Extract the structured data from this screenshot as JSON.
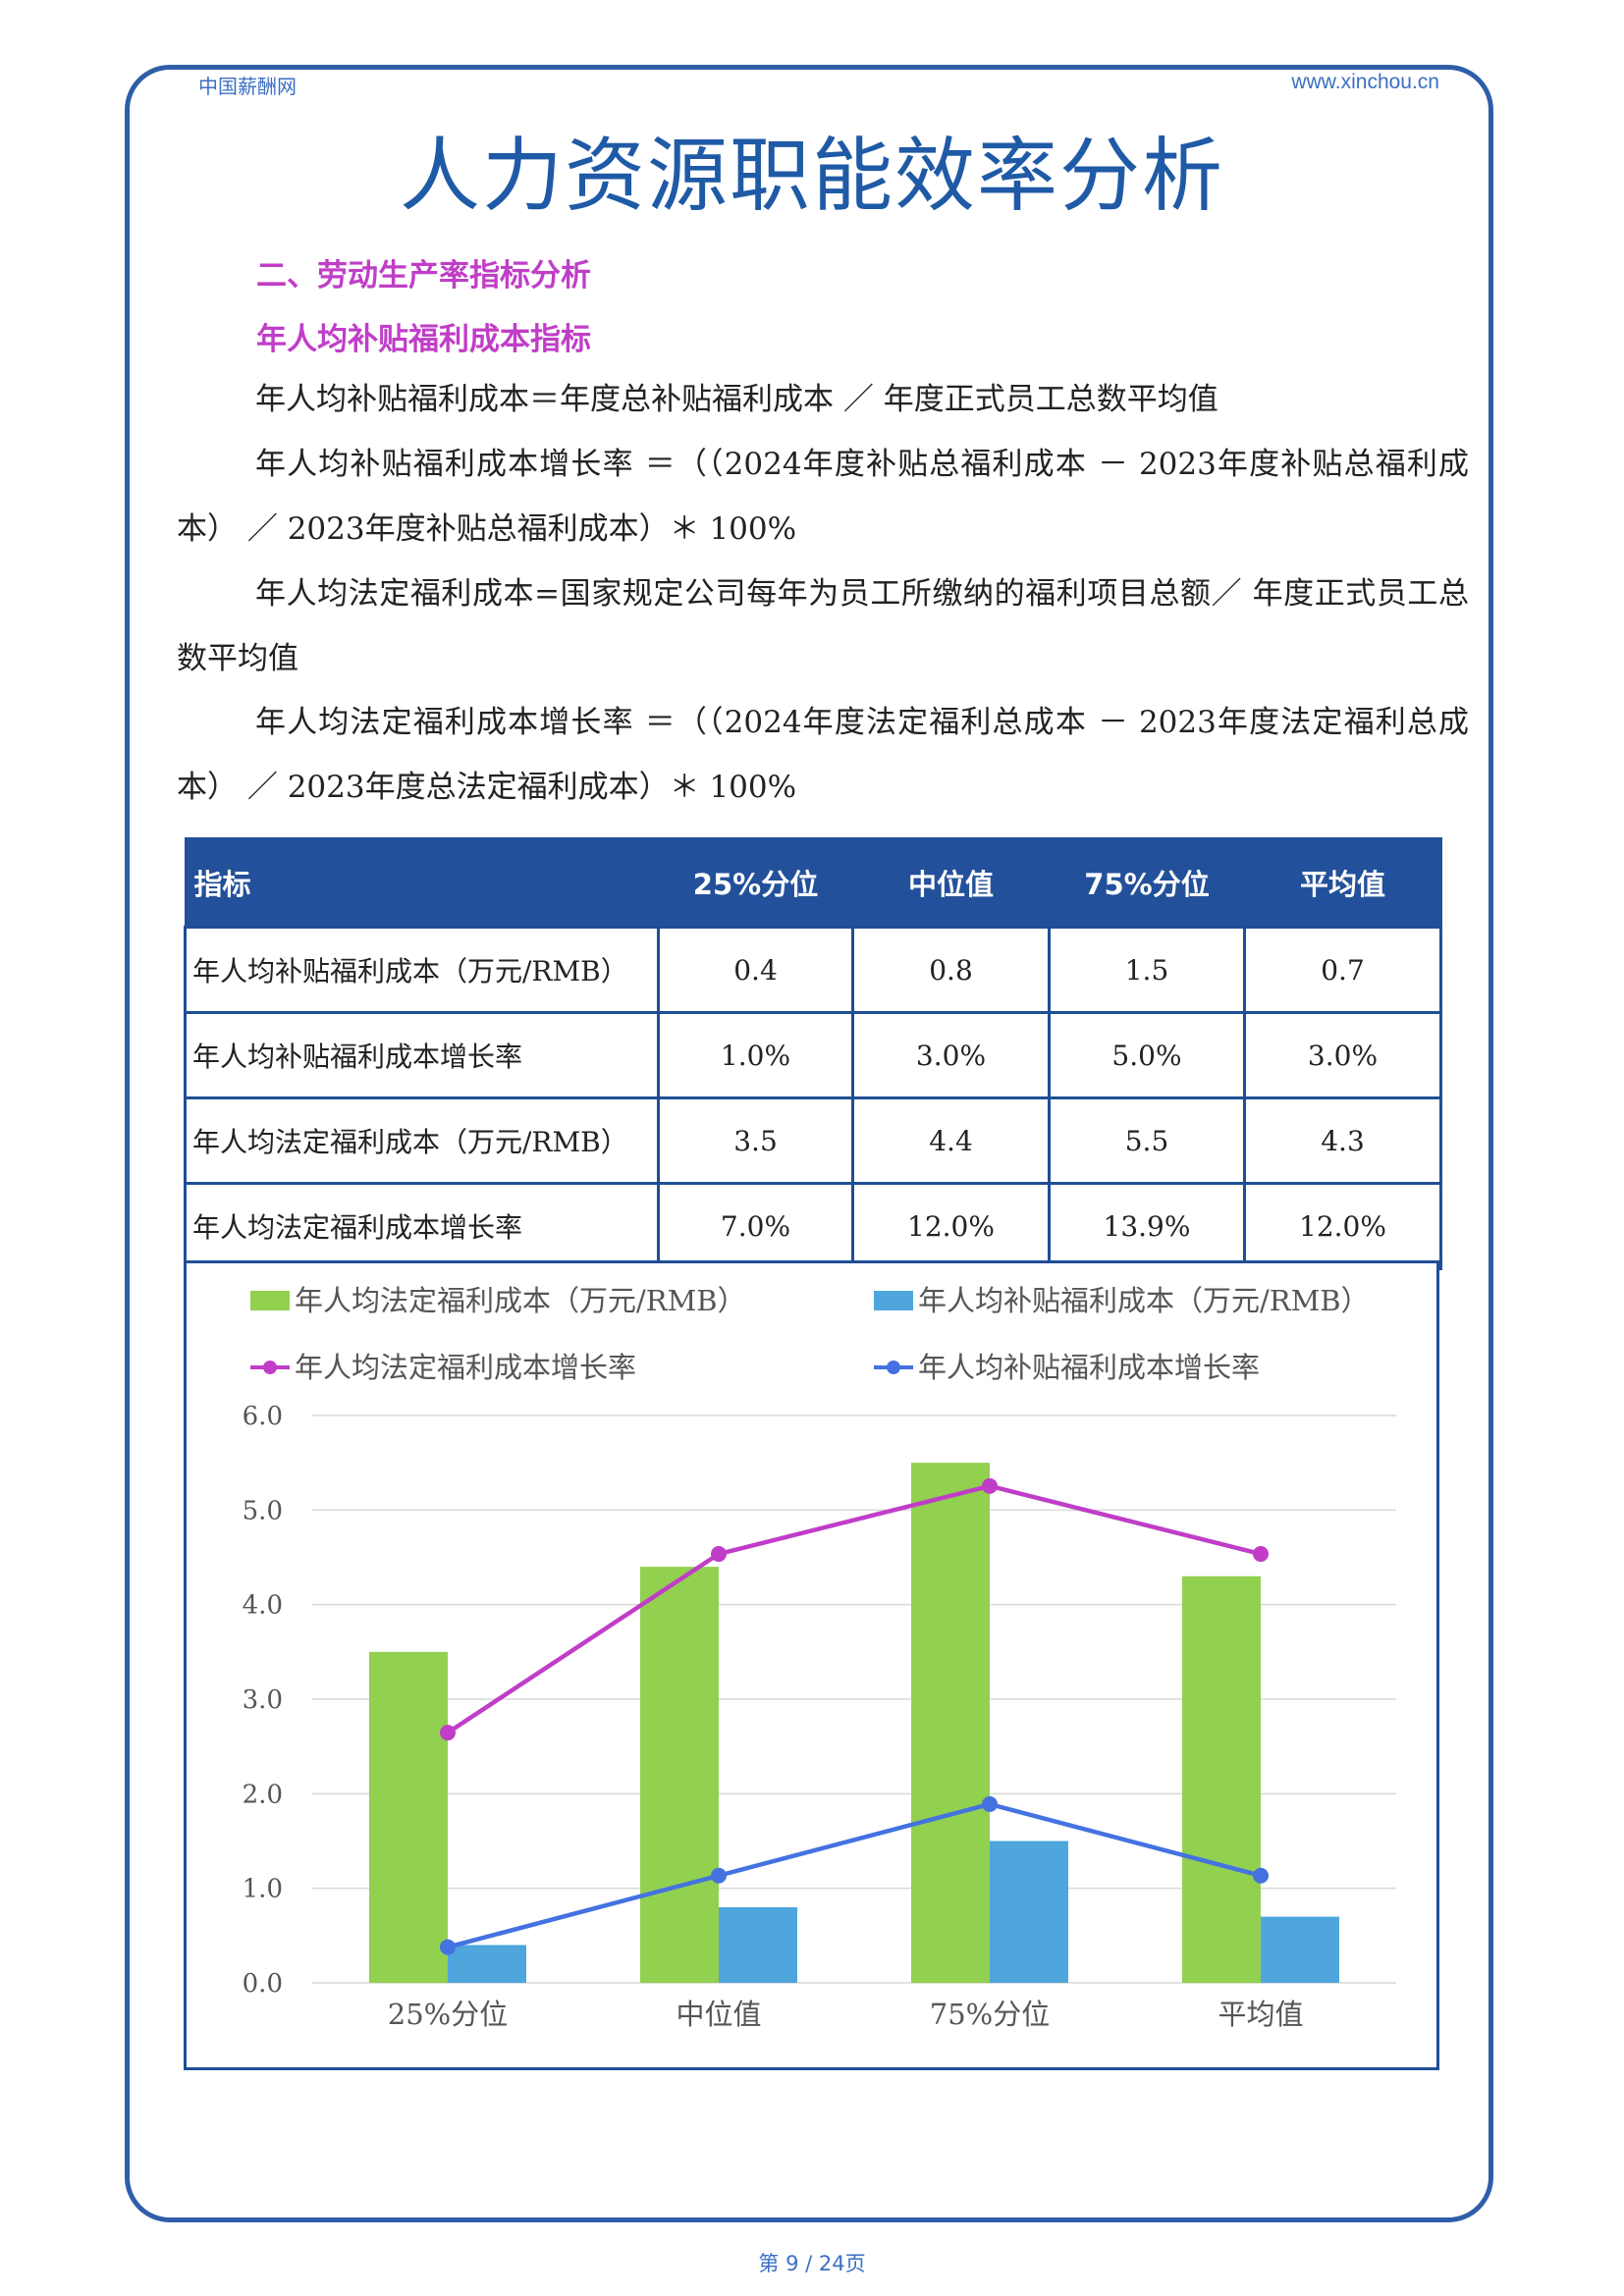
{
  "header": {
    "left": "中国薪酬网",
    "right": "www.xinchou.cn"
  },
  "title": "人力资源职能效率分析",
  "section": {
    "heading": "二、劳动生产率指标分析",
    "subheading": "年人均补贴福利成本指标"
  },
  "paragraphs": [
    "年人均补贴福利成本＝年度总补贴福利成本 ／ 年度正式员工总数平均值",
    "年人均补贴福利成本增长率 ＝（（2024年度补贴总福利成本 － 2023年度补贴总福利成本） ／ 2023年度补贴总福利成本）＊ 100%",
    "年人均法定福利成本=国家规定公司每年为员工所缴纳的福利项目总额／ 年度正式员工总数平均值",
    "年人均法定福利成本增长率 ＝（（2024年度法定福利总成本 － 2023年度法定福利总成本） ／ 2023年度总法定福利成本）＊ 100%"
  ],
  "table": {
    "headers": [
      "指标",
      "25%分位",
      "中位值",
      "75%分位",
      "平均值"
    ],
    "rows": [
      [
        "年人均补贴福利成本（万元/RMB）",
        "0.4",
        "0.8",
        "1.5",
        "0.7"
      ],
      [
        "年人均补贴福利成本增长率",
        "1.0%",
        "3.0%",
        "5.0%",
        "3.0%"
      ],
      [
        "年人均法定福利成本（万元/RMB）",
        "3.5",
        "4.4",
        "5.5",
        "4.3"
      ],
      [
        "年人均法定福利成本增长率",
        "7.0%",
        "12.0%",
        "13.9%",
        "12.0%"
      ]
    ]
  },
  "chart_data": {
    "type": "bar",
    "categories": [
      "25%分位",
      "中位值",
      "75%分位",
      "平均值"
    ],
    "ylim": [
      0,
      6
    ],
    "yticks": [
      "0.0",
      "1.0",
      "2.0",
      "3.0",
      "4.0",
      "5.0",
      "6.0"
    ],
    "grid": true,
    "legend_position": "top",
    "bar_series": [
      {
        "name": "年人均法定福利成本（万元/RMB）",
        "values": [
          3.5,
          4.4,
          5.5,
          4.3
        ],
        "color": "#92d050"
      },
      {
        "name": "年人均补贴福利成本（万元/RMB）",
        "values": [
          0.4,
          0.8,
          1.5,
          0.7
        ],
        "color": "#4ea6dc"
      }
    ],
    "line_series": [
      {
        "name": "年人均法定福利成本增长率",
        "values": [
          7.0,
          12.0,
          13.9,
          12.0
        ],
        "unit": "%",
        "color": "#c03ec7"
      },
      {
        "name": "年人均补贴福利成本增长率",
        "values": [
          1.0,
          3.0,
          5.0,
          3.0
        ],
        "unit": "%",
        "color": "#4472e0"
      }
    ]
  },
  "footer": "第 9 / 24页"
}
